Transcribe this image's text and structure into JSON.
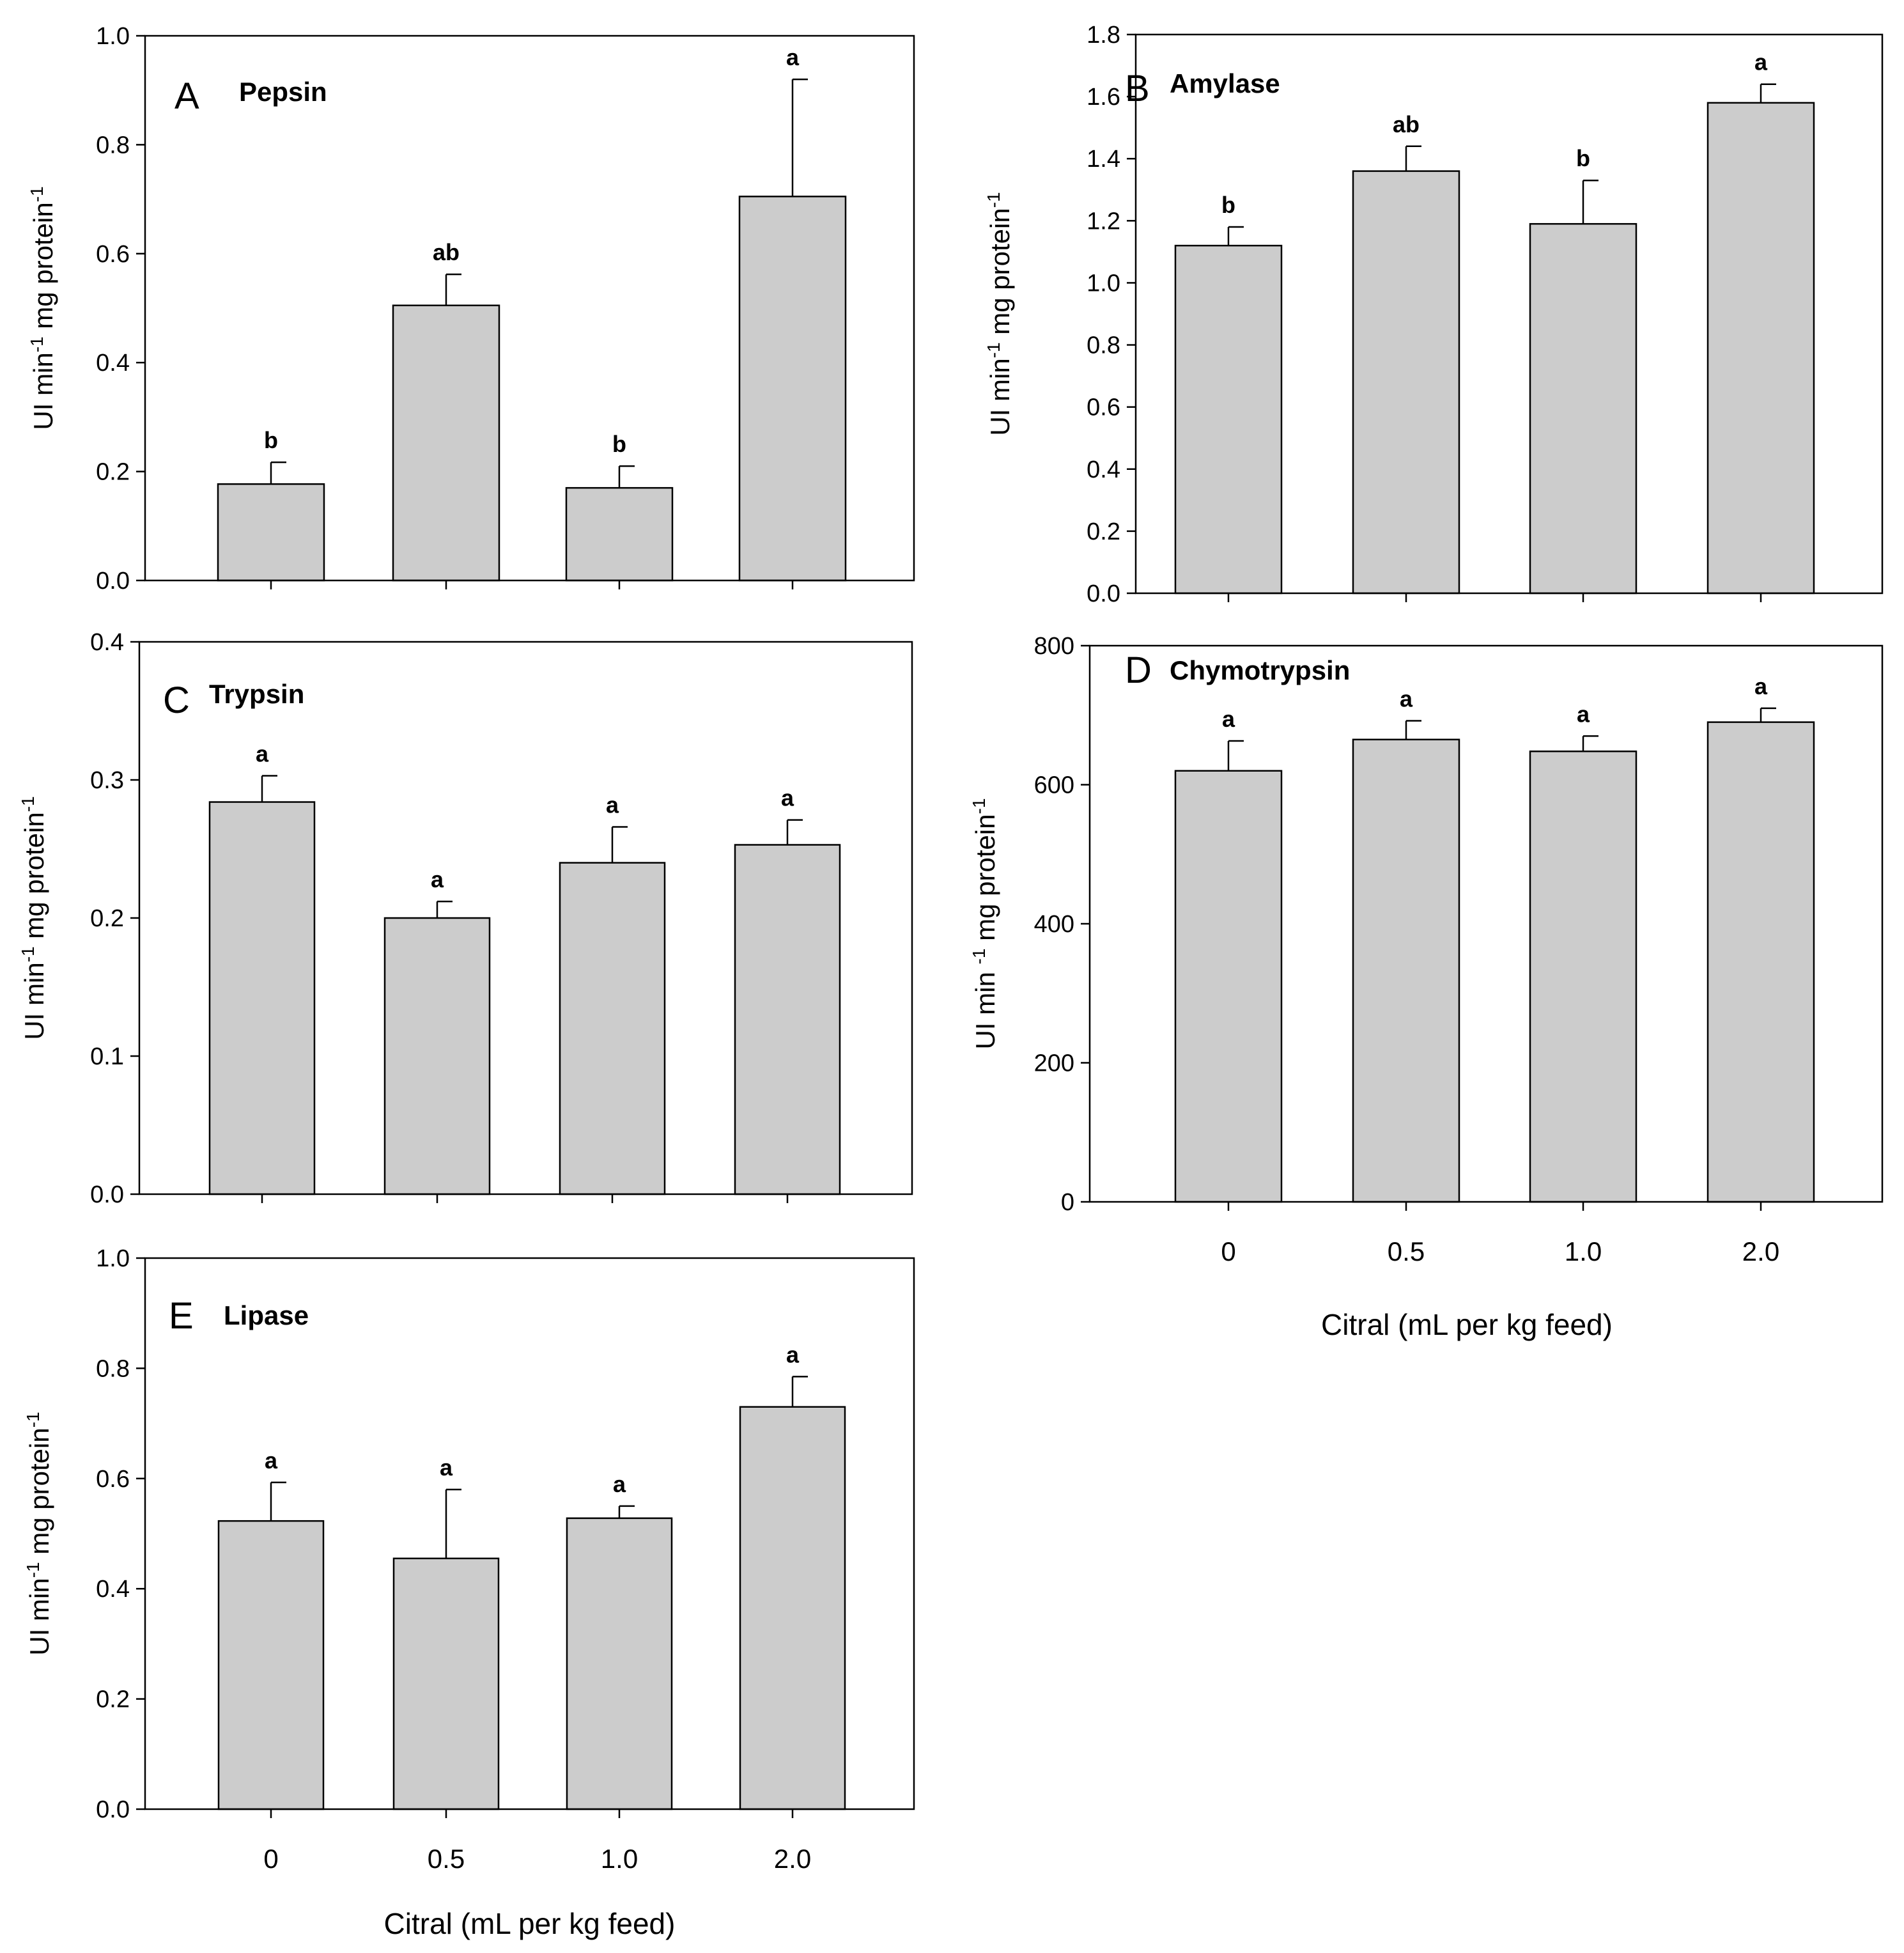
{
  "chart_data": [
    {
      "type": "bar",
      "panel": "A",
      "title": "Pepsin",
      "ylabel": {
        "base": "UI min",
        "sup1": "-1",
        "mid": " mg protein",
        "sup2": "-1"
      },
      "ylim": [
        0,
        1.0
      ],
      "yticks": [
        "0.0",
        "0.2",
        "0.4",
        "0.6",
        "0.8",
        "1.0"
      ],
      "categories": [
        "0",
        "0.5",
        "1.0",
        "2.0"
      ],
      "values": [
        0.177,
        0.505,
        0.17,
        0.705
      ],
      "errors": [
        0.04,
        0.057,
        0.04,
        0.215
      ],
      "significance": [
        "b",
        "ab",
        "b",
        "a"
      ],
      "show_xticklabels": false
    },
    {
      "type": "bar",
      "panel": "B",
      "title": "Amylase",
      "ylabel": {
        "base": "UI min",
        "sup1": "-1",
        "mid": " mg protein",
        "sup2": "-1"
      },
      "ylim": [
        0,
        1.8
      ],
      "yticks": [
        "0.0",
        "0.2",
        "0.4",
        "0.6",
        "0.8",
        "1.0",
        "1.2",
        "1.4",
        "1.6",
        "1.8"
      ],
      "categories": [
        "0",
        "0.5",
        "1.0",
        "2.0"
      ],
      "values": [
        1.12,
        1.36,
        1.19,
        1.58
      ],
      "errors": [
        0.06,
        0.08,
        0.14,
        0.06
      ],
      "significance": [
        "b",
        "ab",
        "b",
        "a"
      ],
      "show_xticklabels": false
    },
    {
      "type": "bar",
      "panel": "C",
      "title": "Trypsin",
      "ylabel": {
        "base": "UI min",
        "sup1": "-1",
        "mid": " mg protein",
        "sup2": "-1"
      },
      "ylim": [
        0,
        0.4
      ],
      "yticks": [
        "0.0",
        "0.1",
        "0.2",
        "0.3",
        "0.4"
      ],
      "categories": [
        "0",
        "0.5",
        "1.0",
        "2.0"
      ],
      "values": [
        0.284,
        0.2,
        0.24,
        0.253
      ],
      "errors": [
        0.019,
        0.012,
        0.026,
        0.018
      ],
      "significance": [
        "a",
        "a",
        "a",
        "a"
      ],
      "show_xticklabels": false
    },
    {
      "type": "bar",
      "panel": "D",
      "title": "Chymotrypsin",
      "ylabel": {
        "base": "UI min ",
        "sup1": "-1",
        "mid": " mg protein",
        "sup2": "-1"
      },
      "ylim": [
        0,
        800
      ],
      "yticks": [
        "0",
        "200",
        "400",
        "600",
        "800"
      ],
      "categories": [
        "0",
        "0.5",
        "1.0",
        "2.0"
      ],
      "values": [
        620,
        665,
        648,
        690
      ],
      "errors": [
        43,
        27,
        22,
        20
      ],
      "significance": [
        "a",
        "a",
        "a",
        "a"
      ],
      "show_xticklabels": true,
      "xlabel": "Citral (mL per kg feed)"
    },
    {
      "type": "bar",
      "panel": "E",
      "title": "Lipase",
      "ylabel": {
        "base": "UI min",
        "sup1": "-1",
        "mid": " mg protein",
        "sup2": "-1"
      },
      "ylim": [
        0,
        1.0
      ],
      "yticks": [
        "0.0",
        "0.2",
        "0.4",
        "0.6",
        "0.8",
        "1.0"
      ],
      "categories": [
        "0",
        "0.5",
        "1.0",
        "2.0"
      ],
      "values": [
        0.523,
        0.455,
        0.528,
        0.73
      ],
      "errors": [
        0.07,
        0.125,
        0.022,
        0.055
      ],
      "significance": [
        "a",
        "a",
        "a",
        "a"
      ],
      "show_xticklabels": true,
      "xlabel": "Citral (mL per kg feed)"
    }
  ]
}
